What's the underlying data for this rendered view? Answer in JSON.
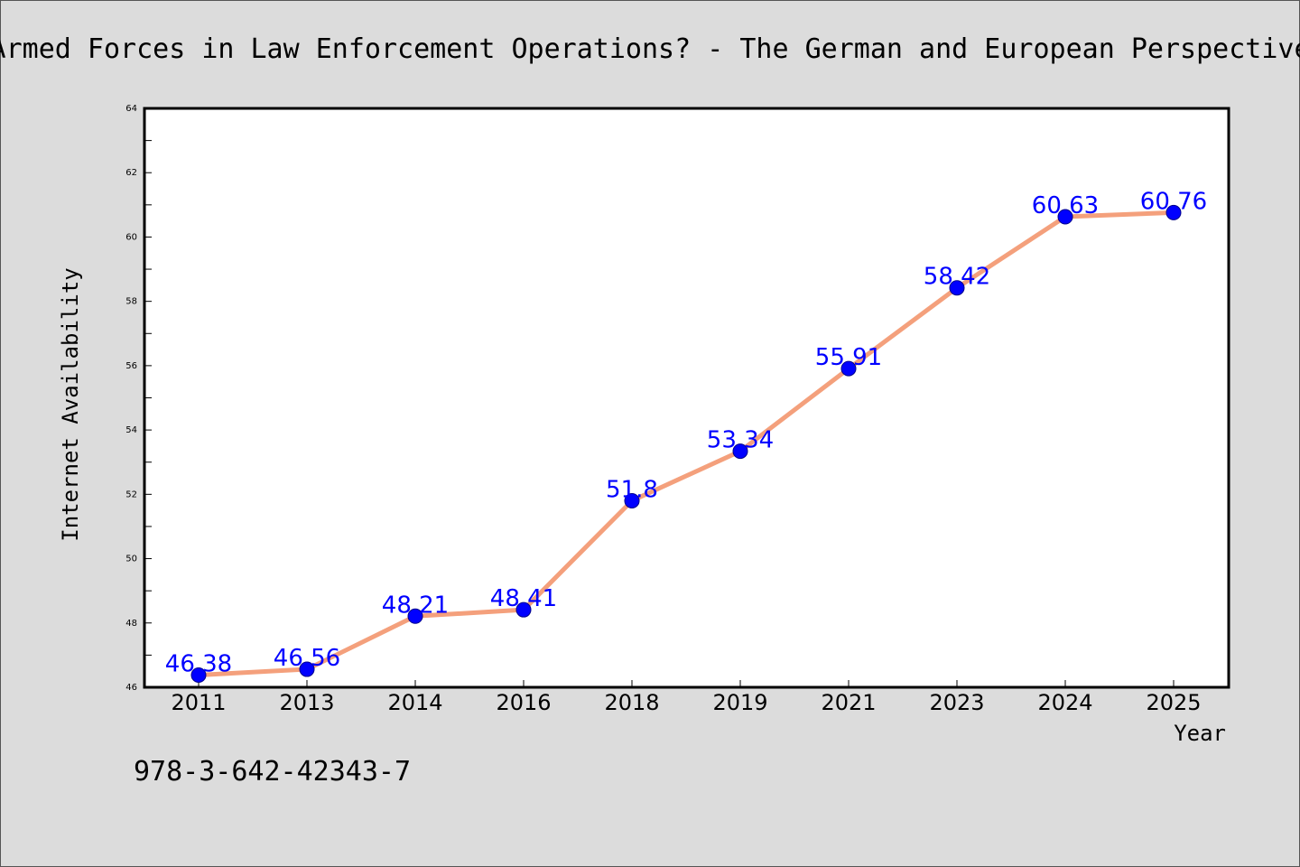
{
  "chart_data": {
    "type": "line",
    "title": "Armed Forces in Law Enforcement Operations? - The German and European Perspective",
    "xlabel": "Year",
    "ylabel": "Internet Availability",
    "annotation": "978-3-642-42343-7",
    "categories": [
      "2011",
      "2013",
      "2014",
      "2016",
      "2018",
      "2019",
      "2021",
      "2023",
      "2024",
      "2025"
    ],
    "series": [
      {
        "values": [
          46.38,
          46.56,
          48.21,
          48.41,
          51.8,
          53.34,
          55.91,
          58.42,
          60.63,
          60.76
        ],
        "data_labels": [
          "46.38",
          "46.56",
          "48.21",
          "48.41",
          "51.8",
          "53.34",
          "55.91",
          "58.42",
          "60.63",
          "60.76"
        ]
      }
    ],
    "ylim": [
      46,
      64
    ],
    "yticks": [
      "46",
      "48",
      "50",
      "52",
      "54",
      "56",
      "58",
      "60",
      "62",
      "64"
    ],
    "grid": false,
    "legend": "none",
    "colors": {
      "line": "#f4a07c",
      "marker": "#0000ff",
      "data_label": "#0000ff",
      "background": "#dcdcdc",
      "plot_background": "#ffffff"
    }
  }
}
